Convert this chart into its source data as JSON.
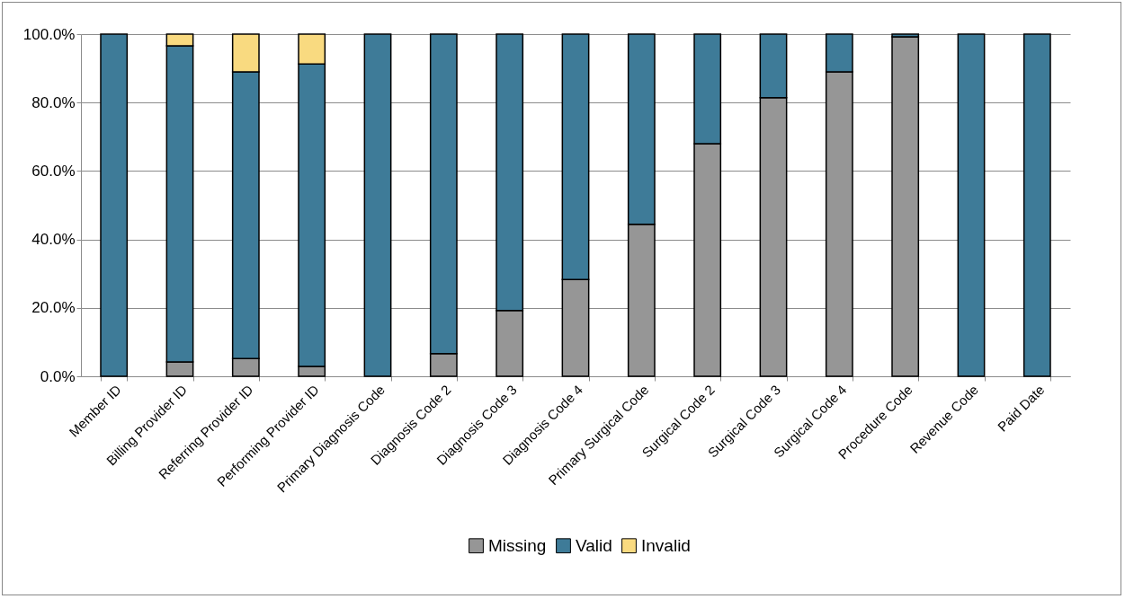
{
  "chart_data": {
    "type": "bar",
    "stacked": true,
    "categories": [
      "Member ID",
      "Billing Provider ID",
      "Referring Provider ID",
      "Performing Provider ID",
      "Primary Diagnosis Code",
      "Diagnosis Code 2",
      "Diagnosis Code 3",
      "Diagnosis Code 4",
      "Primary Surgical Code",
      "Surgical Code 2",
      "Surgical Code 3",
      "Surgical Code 4",
      "Procedure Code",
      "Revenue Code",
      "Paid Date"
    ],
    "series": [
      {
        "name": "Missing",
        "color": "#969696",
        "values": [
          0,
          4.2,
          5.2,
          2.9,
          0,
          6.6,
          19.2,
          28.3,
          44.4,
          68,
          81.4,
          89,
          99.2,
          0,
          0
        ]
      },
      {
        "name": "Valid",
        "color": "#3e7b98",
        "values": [
          100,
          92.4,
          83.8,
          88.4,
          100,
          93.4,
          80.8,
          71.7,
          55.6,
          32,
          18.6,
          11,
          0.8,
          100,
          100
        ]
      },
      {
        "name": "Invalid",
        "color": "#f9da80",
        "values": [
          0,
          3.4,
          11,
          8.7,
          0,
          0,
          0,
          0,
          0,
          0,
          0,
          0,
          0,
          0,
          0
        ]
      }
    ],
    "ylim": [
      0,
      100
    ],
    "yticks": [
      {
        "value": 0,
        "label": "0.0%"
      },
      {
        "value": 20,
        "label": "20.0%"
      },
      {
        "value": 40,
        "label": "40.0%"
      },
      {
        "value": 60,
        "label": "60.0%"
      },
      {
        "value": 80,
        "label": "80.0%"
      },
      {
        "value": 100,
        "label": "100.0%"
      }
    ],
    "grid": "y",
    "legend": "bottom"
  }
}
